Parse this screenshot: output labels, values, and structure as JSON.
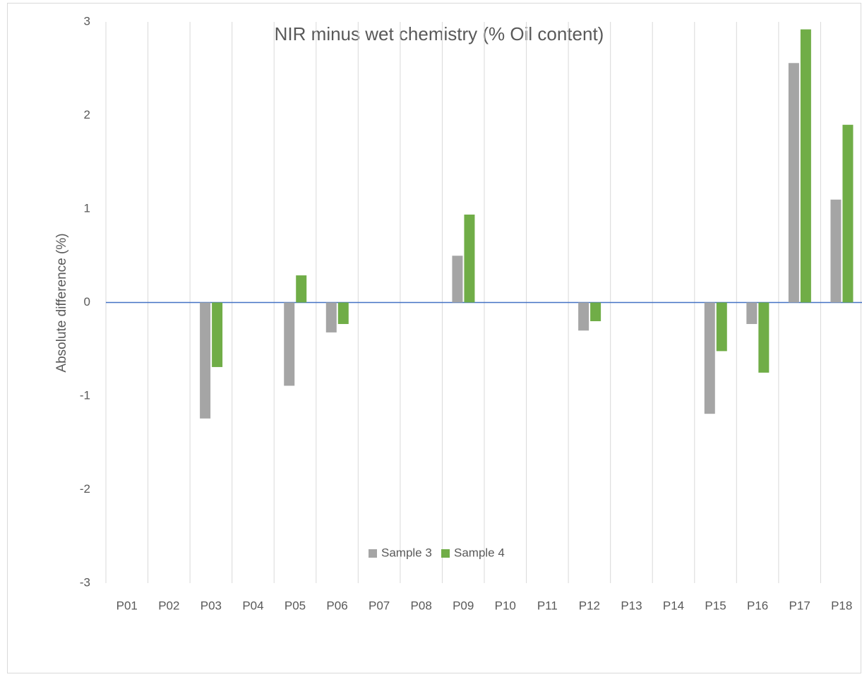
{
  "chart_data": {
    "type": "bar",
    "title": "NIR minus wet chemistry (% Oil content)",
    "y_label": "Absolute difference (%)",
    "categories": [
      "P01",
      "P02",
      "P03",
      "P04",
      "P05",
      "P06",
      "P07",
      "P08",
      "P09",
      "P10",
      "P11",
      "P12",
      "P13",
      "P14",
      "P15",
      "P16",
      "P17",
      "P18"
    ],
    "series": [
      {
        "name": "Sample 3",
        "color": "#a5a5a5",
        "values": [
          null,
          null,
          -1.24,
          null,
          -0.89,
          -0.32,
          null,
          null,
          0.5,
          null,
          null,
          -0.3,
          null,
          null,
          -1.19,
          -0.23,
          2.56,
          1.1
        ]
      },
      {
        "name": "Sample 4",
        "color": "#70ad47",
        "values": [
          null,
          null,
          -0.69,
          null,
          0.29,
          -0.23,
          null,
          null,
          0.94,
          null,
          null,
          -0.2,
          null,
          null,
          -0.52,
          -0.75,
          2.92,
          1.9
        ]
      }
    ],
    "ylim": [
      -3,
      3
    ],
    "yticks": [
      -3,
      -2,
      -1,
      0,
      1,
      2,
      3
    ],
    "legend": "bottom"
  }
}
